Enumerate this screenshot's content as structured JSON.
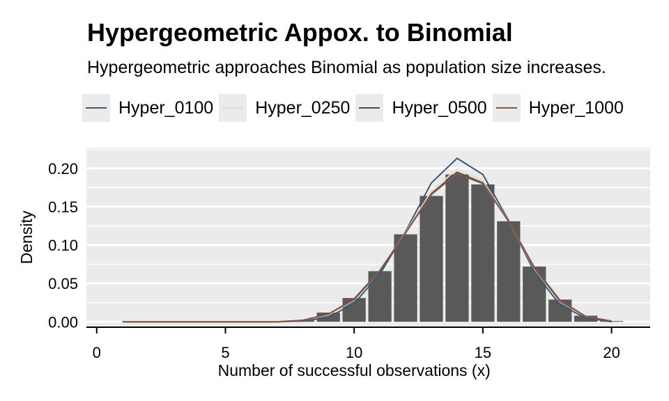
{
  "title": "Hypergeometric Appox. to Binomial",
  "subtitle": "Hypergeometric approaches Binomial as population size increases.",
  "legend": [
    {
      "label": "Hyper_0100",
      "color": "#3b5874"
    },
    {
      "label": "Hyper_0250",
      "color": "#e4dcc8"
    },
    {
      "label": "Hyper_0500",
      "color": "#4a5248"
    },
    {
      "label": "Hyper_1000",
      "color": "#8b5448"
    }
  ],
  "colors": {
    "panel": "#ebebeb",
    "bar": "#595959",
    "grid": "#ffffff"
  },
  "chart_data": {
    "type": "bar",
    "title": "Hypergeometric Appox. to Binomial",
    "subtitle": "Hypergeometric approaches Binomial as population size increases.",
    "xlabel": "Number of successful observations (x)",
    "ylabel": "Density",
    "xlim": [
      -0.4,
      21.5
    ],
    "ylim": [
      -0.007,
      0.227
    ],
    "xticks": [
      0,
      5,
      10,
      15,
      20
    ],
    "xtick_labels": [
      "0",
      "5",
      "10",
      "15",
      "20"
    ],
    "yticks": [
      0,
      0.05,
      0.1,
      0.15,
      0.2
    ],
    "ytick_labels": [
      "0.00",
      "0.05",
      "0.10",
      "0.15",
      "0.20"
    ],
    "grid": true,
    "legend_position": "top",
    "bars": {
      "x": [
        8,
        9,
        10,
        11,
        12,
        13,
        14,
        15,
        16,
        17,
        18,
        19,
        20
      ],
      "values": [
        0.002,
        0.012,
        0.031,
        0.066,
        0.114,
        0.164,
        0.192,
        0.179,
        0.131,
        0.072,
        0.029,
        0.008,
        0.001
      ]
    },
    "series": [
      {
        "name": "Hyper_0100",
        "x": [
          1,
          2,
          3,
          4,
          5,
          6,
          7,
          8,
          9,
          10,
          11,
          12,
          13,
          14,
          15,
          16,
          17,
          18,
          19,
          20
        ],
        "values": [
          0,
          0,
          0,
          0,
          0,
          0,
          0,
          0.001,
          0.006,
          0.024,
          0.062,
          0.118,
          0.181,
          0.213,
          0.192,
          0.132,
          0.065,
          0.022,
          0.005,
          0
        ]
      },
      {
        "name": "Hyper_0250",
        "x": [
          1,
          2,
          3,
          4,
          5,
          6,
          7,
          8,
          9,
          10,
          11,
          12,
          13,
          14,
          15,
          16,
          17,
          18,
          19,
          20
        ],
        "values": [
          0,
          0,
          0,
          0,
          0,
          0,
          0,
          0.002,
          0.009,
          0.028,
          0.066,
          0.117,
          0.17,
          0.199,
          0.184,
          0.131,
          0.069,
          0.026,
          0.007,
          0.001
        ]
      },
      {
        "name": "Hyper_0500",
        "x": [
          1,
          2,
          3,
          4,
          5,
          6,
          7,
          8,
          9,
          10,
          11,
          12,
          13,
          14,
          15,
          16,
          17,
          18,
          19,
          20
        ],
        "values": [
          0,
          0,
          0,
          0,
          0,
          0,
          0,
          0.002,
          0.01,
          0.029,
          0.066,
          0.116,
          0.167,
          0.195,
          0.181,
          0.131,
          0.07,
          0.027,
          0.007,
          0.001
        ]
      },
      {
        "name": "Hyper_1000",
        "x": [
          1,
          2,
          3,
          4,
          5,
          6,
          7,
          8,
          9,
          10,
          11,
          12,
          13,
          14,
          15,
          16,
          17,
          18,
          19,
          20
        ],
        "values": [
          0,
          0,
          0,
          0,
          0,
          0,
          0,
          0.002,
          0.01,
          0.03,
          0.067,
          0.116,
          0.166,
          0.193,
          0.18,
          0.131,
          0.071,
          0.028,
          0.007,
          0.001
        ]
      }
    ]
  }
}
